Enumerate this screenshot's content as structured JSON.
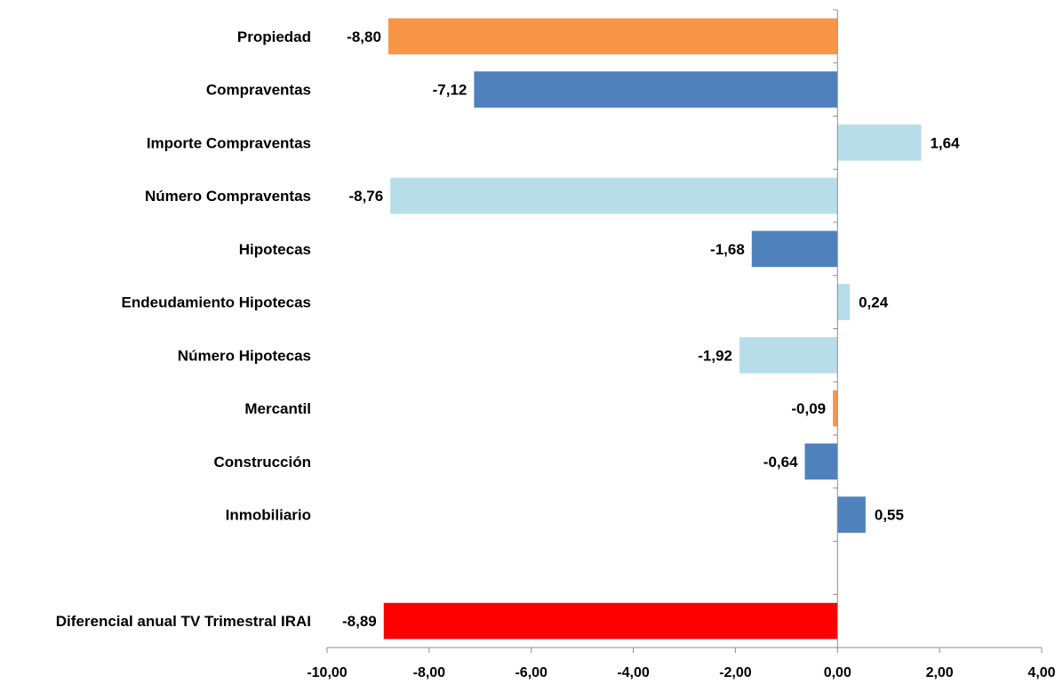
{
  "chart_data": {
    "type": "bar",
    "orientation": "horizontal",
    "title": "",
    "xlabel": "",
    "ylabel": "",
    "xlim": [
      -10,
      4
    ],
    "x_ticks": [
      "-10,00",
      "-8,00",
      "-6,00",
      "-4,00",
      "-2,00",
      "0,00",
      "2,00",
      "4,00"
    ],
    "grid": false,
    "legend": "none",
    "colors": {
      "orange": "#F79646",
      "blue": "#4F81BD",
      "light_blue": "#B7DEE8",
      "red": "#FF0000"
    },
    "bars": [
      {
        "category": "Propiedad",
        "value": -8.8,
        "label": "-8,80",
        "color": "#F79646"
      },
      {
        "category": "Compraventas",
        "value": -7.12,
        "label": "-7,12",
        "color": "#4F81BD"
      },
      {
        "category": "Importe Compraventas",
        "value": 1.64,
        "label": "1,64",
        "color": "#B7DEE8"
      },
      {
        "category": "Número Compraventas",
        "value": -8.76,
        "label": "-8,76",
        "color": "#B7DEE8"
      },
      {
        "category": "Hipotecas",
        "value": -1.68,
        "label": "-1,68",
        "color": "#4F81BD"
      },
      {
        "category": "Endeudamiento Hipotecas",
        "value": 0.24,
        "label": "0,24",
        "color": "#B7DEE8"
      },
      {
        "category": "Número Hipotecas",
        "value": -1.92,
        "label": "-1,92",
        "color": "#B7DEE8"
      },
      {
        "category": "Mercantil",
        "value": -0.09,
        "label": "-0,09",
        "color": "#F79646"
      },
      {
        "category": "Construcción",
        "value": -0.64,
        "label": "-0,64",
        "color": "#4F81BD"
      },
      {
        "category": "Inmobiliario",
        "value": 0.55,
        "label": "0,55",
        "color": "#4F81BD"
      },
      {
        "category": "",
        "value": null,
        "label": "",
        "color": ""
      },
      {
        "category": "Diferencial anual TV Trimestral IRAI",
        "value": -8.89,
        "label": "-8,89",
        "color": "#FF0000"
      }
    ]
  }
}
